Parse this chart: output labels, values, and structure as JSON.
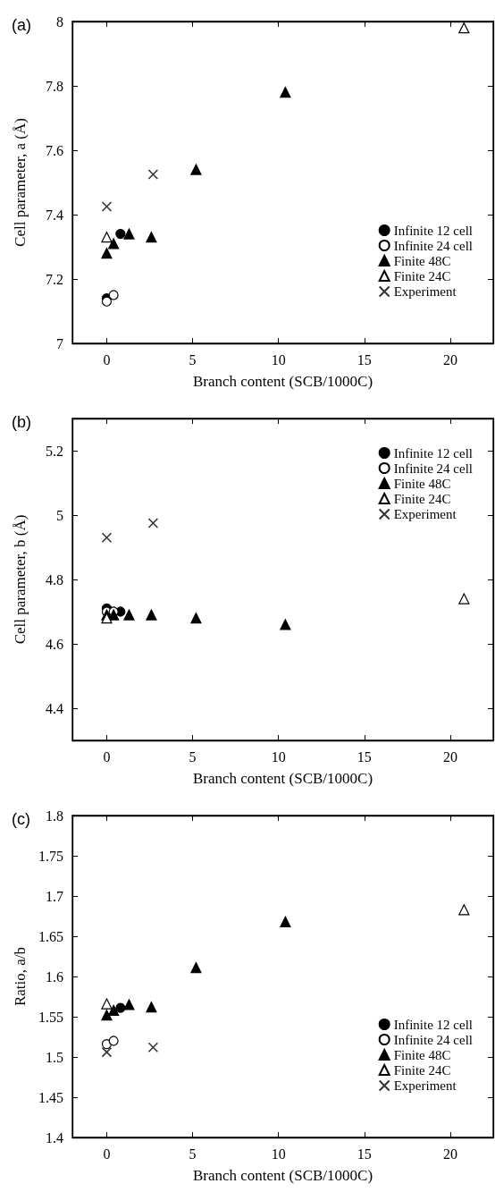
{
  "chart_data": [
    {
      "type": "scatter",
      "title": "(a)",
      "xlabel": "Branch content (SCB/1000C)",
      "ylabel": "Cell parameter, a (Å)",
      "xlim": [
        -2,
        22.5
      ],
      "xticks": [
        0,
        5,
        10,
        15,
        20
      ],
      "ylim": [
        7,
        8
      ],
      "yticks": [
        7,
        7.2,
        7.4,
        7.6,
        7.8,
        8
      ],
      "legend": "bottom right",
      "grid": false,
      "series": [
        {
          "name": "Infinite 12 cell",
          "color": "#000000",
          "marker": "circle",
          "x": [
            0,
            0.8
          ],
          "values": [
            7.14,
            7.34
          ]
        },
        {
          "name": "Infinite 24 cell",
          "color": "#ffffff",
          "marker": "circle",
          "x": [
            0,
            0.4
          ],
          "values": [
            7.13,
            7.15
          ]
        },
        {
          "name": "Finite 48C",
          "color": "#000000",
          "marker": "triangle",
          "x": [
            0,
            0.4,
            1.3,
            2.6,
            5.2,
            10.4
          ],
          "values": [
            7.28,
            7.31,
            7.34,
            7.33,
            7.54,
            7.78
          ]
        },
        {
          "name": "Finite 24C",
          "color": "#ffffff",
          "marker": "triangle",
          "x": [
            0,
            20.8
          ],
          "values": [
            7.33,
            7.98
          ]
        },
        {
          "name": "Experiment",
          "color": "#000000",
          "marker": "cross",
          "x": [
            0,
            2.7
          ],
          "values": [
            7.425,
            7.525
          ]
        }
      ]
    },
    {
      "type": "scatter",
      "title": "(b)",
      "xlabel": "Branch content (SCB/1000C)",
      "ylabel": "Cell parameter, b (Å)",
      "xlim": [
        -2,
        22.5
      ],
      "xticks": [
        0,
        5,
        10,
        15,
        20
      ],
      "ylim": [
        4.3,
        5.3
      ],
      "yticks": [
        4.4,
        4.6,
        4.8,
        5,
        5.2
      ],
      "legend": "top right",
      "grid": false,
      "series": [
        {
          "name": "Infinite 12 cell",
          "color": "#000000",
          "marker": "circle",
          "x": [
            0,
            0.8
          ],
          "values": [
            4.71,
            4.7
          ]
        },
        {
          "name": "Infinite 24 cell",
          "color": "#ffffff",
          "marker": "circle",
          "x": [
            0,
            0.4
          ],
          "values": [
            4.7,
            4.7
          ]
        },
        {
          "name": "Finite 48C",
          "color": "#000000",
          "marker": "triangle",
          "x": [
            0,
            0.4,
            1.3,
            2.6,
            5.2,
            10.4
          ],
          "values": [
            4.69,
            4.69,
            4.69,
            4.69,
            4.68,
            4.66
          ]
        },
        {
          "name": "Finite 24C",
          "color": "#ffffff",
          "marker": "triangle",
          "x": [
            0,
            20.8
          ],
          "values": [
            4.68,
            4.74
          ]
        },
        {
          "name": "Experiment",
          "color": "#000000",
          "marker": "cross",
          "x": [
            0,
            2.7
          ],
          "values": [
            4.93,
            4.975
          ]
        }
      ]
    },
    {
      "type": "scatter",
      "title": "(c)",
      "xlabel": "Branch content (SCB/1000C)",
      "ylabel": "Ratio, a/b",
      "xlim": [
        -2,
        22.5
      ],
      "xticks": [
        0,
        5,
        10,
        15,
        20
      ],
      "ylim": [
        1.4,
        1.8
      ],
      "yticks": [
        1.4,
        1.45,
        1.5,
        1.55,
        1.6,
        1.65,
        1.7,
        1.75,
        1.8
      ],
      "legend": "bottom right",
      "grid": false,
      "series": [
        {
          "name": "Infinite 12 cell",
          "color": "#000000",
          "marker": "circle",
          "x": [
            0.8
          ],
          "values": [
            1.561
          ]
        },
        {
          "name": "Infinite 24 cell",
          "color": "#ffffff",
          "marker": "circle",
          "x": [
            0,
            0.4
          ],
          "values": [
            1.516,
            1.52
          ]
        },
        {
          "name": "Finite 48C",
          "color": "#000000",
          "marker": "triangle",
          "x": [
            0,
            0.4,
            1.3,
            2.6,
            5.2,
            10.4
          ],
          "values": [
            1.552,
            1.558,
            1.565,
            1.562,
            1.611,
            1.668
          ]
        },
        {
          "name": "Finite 24C",
          "color": "#ffffff",
          "marker": "triangle",
          "x": [
            0,
            20.8
          ],
          "values": [
            1.566,
            1.683
          ]
        },
        {
          "name": "Experiment",
          "color": "#000000",
          "marker": "cross",
          "x": [
            0,
            2.7
          ],
          "values": [
            1.506,
            1.512
          ]
        }
      ]
    }
  ]
}
